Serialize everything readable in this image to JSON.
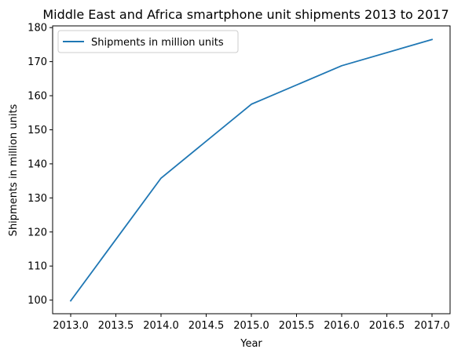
{
  "chart_data": {
    "type": "line",
    "title": "Middle East and Africa smartphone unit shipments 2013 to 2017",
    "xlabel": "Year",
    "ylabel": "Shipments in million units",
    "x": [
      2013,
      2014,
      2015,
      2016,
      2017
    ],
    "series": [
      {
        "name": "Shipments in million units",
        "values": [
          99.8,
          135.8,
          157.5,
          168.8,
          176.5
        ],
        "color": "#1f77b4"
      }
    ],
    "xlim": [
      2012.8,
      2017.2
    ],
    "ylim": [
      96,
      180.5
    ],
    "xticks": [
      2013.0,
      2013.5,
      2014.0,
      2014.5,
      2015.0,
      2015.5,
      2016.0,
      2016.5,
      2017.0
    ],
    "xtick_labels": [
      "2013.0",
      "2013.5",
      "2014.0",
      "2014.5",
      "2015.0",
      "2015.5",
      "2016.0",
      "2016.5",
      "2017.0"
    ],
    "yticks": [
      100,
      110,
      120,
      130,
      140,
      150,
      160,
      170,
      180
    ],
    "ytick_labels": [
      "100",
      "110",
      "120",
      "130",
      "140",
      "150",
      "160",
      "170",
      "180"
    ],
    "grid": false,
    "legend_position": "upper-left"
  }
}
